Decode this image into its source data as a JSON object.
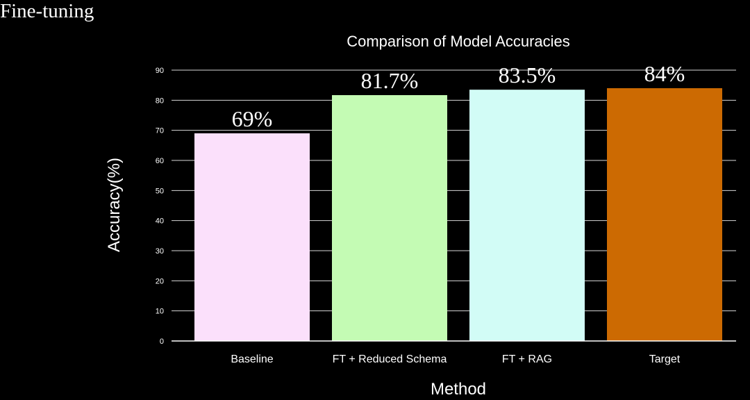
{
  "page": {
    "heading": "Fine-tuning"
  },
  "chart_data": {
    "type": "bar",
    "title": "Comparison of Model Accuracies",
    "xlabel": "Method",
    "ylabel": "Accuracy(%)",
    "categories": [
      "Baseline",
      "FT + Reduced Schema",
      "FT + RAG",
      "Target"
    ],
    "values": [
      69,
      81.7,
      83.5,
      84
    ],
    "data_labels": [
      "69%",
      "81.7%",
      "83.5%",
      "84%"
    ],
    "colors": [
      "#fbe0fb",
      "#c4fbb4",
      "#d2fcf6",
      "#cc6a02"
    ],
    "ylim": [
      0,
      90
    ],
    "yticks": [
      0,
      10,
      20,
      30,
      40,
      50,
      60,
      70,
      80,
      90
    ],
    "grid": true,
    "background": "#000000",
    "text_color": "#ffffff"
  }
}
